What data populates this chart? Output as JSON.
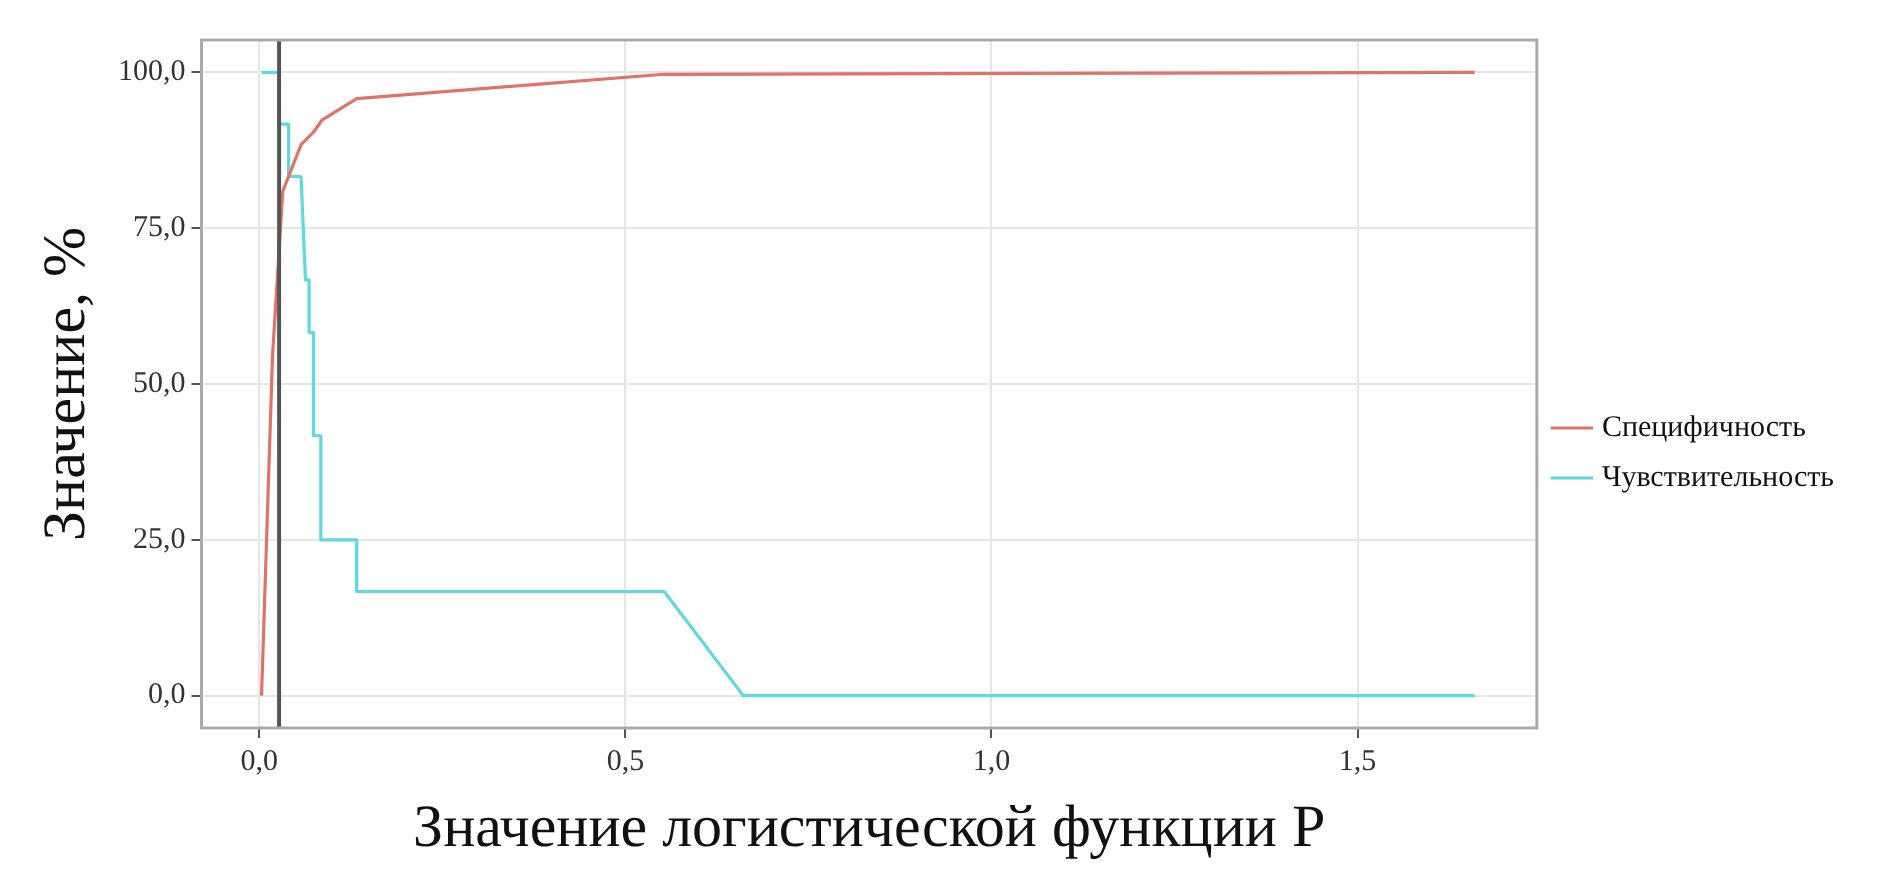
{
  "chart_data": {
    "type": "line",
    "xlabel": "Значение логистической функции P",
    "ylabel": "Значение, %",
    "xlim": [
      -0.079,
      1.745
    ],
    "ylim": [
      -5.2,
      105.2
    ],
    "xticks": [
      {
        "value": 0,
        "label": "0,0"
      },
      {
        "value": 0.5,
        "label": "0,5"
      },
      {
        "value": 1,
        "label": "1,0"
      },
      {
        "value": 1.5,
        "label": "1,5"
      }
    ],
    "yticks": [
      {
        "value": 0,
        "label": "0,0"
      },
      {
        "value": 25,
        "label": "25,0"
      },
      {
        "value": 50,
        "label": "50,0"
      },
      {
        "value": 75,
        "label": "75,0"
      },
      {
        "value": 100,
        "label": "100,0"
      }
    ],
    "grid": true,
    "legend": "right",
    "marker": "none",
    "line_style": "solid",
    "series": [
      {
        "name": "Специфичность",
        "color": "#e07368",
        "x": [
          0.003,
          0.018,
          0.032,
          0.057,
          0.074,
          0.086,
          0.133,
          0.553,
          1.66
        ],
        "values": [
          0,
          54.5,
          80.9,
          88.4,
          90.4,
          92.4,
          95.8,
          99.7,
          100
        ]
      },
      {
        "name": "Чувствительность",
        "color": "#5fd8de",
        "x": [
          0.003,
          0.027,
          0.027,
          0.04,
          0.04,
          0.057,
          0.063,
          0.068,
          0.068,
          0.074,
          0.074,
          0.084,
          0.084,
          0.133,
          0.133,
          0.553,
          0.661,
          1.66
        ],
        "values": [
          100,
          100,
          91.7,
          91.7,
          83.3,
          83.3,
          66.7,
          66.7,
          58.3,
          58.3,
          41.7,
          41.7,
          25,
          25,
          16.7,
          16.7,
          0,
          0
        ]
      }
    ],
    "ref_lines": [
      {
        "axis": "x",
        "value": 0.027,
        "color": "#555555",
        "line_style": "solid"
      }
    ]
  }
}
